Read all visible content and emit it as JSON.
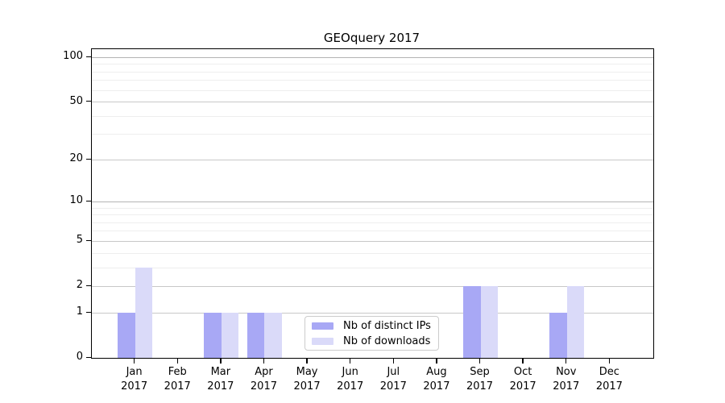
{
  "chart_data": {
    "type": "bar",
    "title": "GEOquery 2017",
    "categories": [
      "Jan",
      "Feb",
      "Mar",
      "Apr",
      "May",
      "Jun",
      "Jul",
      "Aug",
      "Sep",
      "Oct",
      "Nov",
      "Dec"
    ],
    "year_label": "2017",
    "series": [
      {
        "name": "Nb of distinct IPs",
        "color": "#a8a8f5",
        "values": [
          1,
          0,
          1,
          1,
          0,
          0,
          0,
          0,
          2,
          0,
          1,
          0
        ]
      },
      {
        "name": "Nb of downloads",
        "color": "#dadaf9",
        "values": [
          3,
          0,
          1,
          1,
          0,
          0,
          0,
          0,
          2,
          0,
          2,
          0
        ]
      }
    ],
    "yscale": "log1p",
    "ylim": [
      0,
      114
    ],
    "y_ticks": [
      0,
      1,
      2,
      5,
      10,
      20,
      50,
      100
    ],
    "y_minor_gridlines": [
      3,
      4,
      6,
      7,
      8,
      9,
      30,
      40,
      60,
      70,
      80,
      90
    ],
    "grid": true,
    "legend_position": "bottom-center",
    "colors": {
      "axis": "#000000",
      "major_gridline": "#c8c8c8",
      "decade_gridline": "#b4b4b4",
      "minor_gridline": "#eeeeee"
    }
  }
}
